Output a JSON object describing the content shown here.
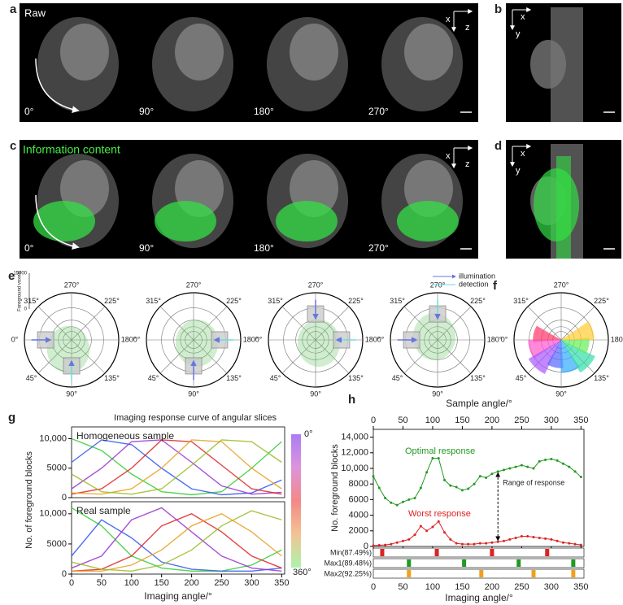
{
  "figure": {
    "panel_labels": [
      "a",
      "b",
      "c",
      "d",
      "e",
      "f",
      "g",
      "h"
    ],
    "raw_label": "Raw",
    "info_label": "Information content",
    "view_angles": [
      "0°",
      "90°",
      "180°",
      "270°"
    ],
    "axis_letters": [
      "x",
      "z",
      "y"
    ],
    "polar_angles": [
      "270°",
      "225°",
      "180°",
      "135°",
      "90°",
      "45°",
      "0°",
      "315°"
    ],
    "legend": [
      "illumination",
      "detection"
    ],
    "scale_label": "Foreground voxels",
    "scale_max": 15000,
    "scale_min": 0
  },
  "chart_data": [
    {
      "type": "line",
      "title": "Imaging response curve of angular slices",
      "annotation": "Homogeneous sample",
      "ylabel": "No. of foreground blocks",
      "colorbar_labels": [
        "0°",
        "360°"
      ],
      "x": [
        0,
        50,
        100,
        150,
        200,
        250,
        300,
        350
      ],
      "xlim": [
        0,
        355
      ],
      "ylim": [
        0,
        12000
      ],
      "yticks": [
        0,
        5000,
        {
          "value": 10000,
          "label": "10,000"
        }
      ],
      "series": [
        {
          "color": "#33cc33",
          "values": [
            10000,
            8000,
            4000,
            1000,
            500,
            1000,
            5000,
            9500
          ]
        },
        {
          "color": "#3355ee",
          "values": [
            6000,
            9800,
            9000,
            5000,
            1500,
            500,
            800,
            3000
          ]
        },
        {
          "color": "#9933cc",
          "values": [
            1500,
            5000,
            9500,
            9800,
            6000,
            2000,
            600,
            900
          ]
        },
        {
          "color": "#dd2222",
          "values": [
            600,
            1500,
            5000,
            9800,
            9500,
            5500,
            1500,
            600
          ]
        },
        {
          "color": "#e8a020",
          "values": [
            800,
            600,
            1500,
            5000,
            9800,
            9500,
            5000,
            1500
          ]
        },
        {
          "color": "#99bb22",
          "values": [
            4000,
            1000,
            600,
            1500,
            5500,
            9800,
            9500,
            6000
          ]
        }
      ]
    },
    {
      "type": "line",
      "annotation": "Real sample",
      "xlabel": "Imaging angle/°",
      "x": [
        0,
        50,
        100,
        150,
        200,
        250,
        300,
        350
      ],
      "xlim": [
        0,
        355
      ],
      "xticks": [
        0,
        50,
        100,
        150,
        200,
        250,
        300,
        350
      ],
      "ylim": [
        0,
        12000
      ],
      "yticks": [
        0,
        5000,
        {
          "value": 10000,
          "label": "10,000"
        }
      ],
      "series": [
        {
          "color": "#33cc33",
          "values": [
            11000,
            8000,
            3000,
            1000,
            500,
            500,
            1500,
            4000
          ]
        },
        {
          "color": "#3355ee",
          "values": [
            3000,
            9000,
            6000,
            2000,
            800,
            500,
            500,
            1000
          ]
        },
        {
          "color": "#9933cc",
          "values": [
            1000,
            3000,
            9000,
            11000,
            7000,
            3000,
            1000,
            500
          ]
        },
        {
          "color": "#dd2222",
          "values": [
            500,
            800,
            3000,
            8000,
            10000,
            7000,
            3000,
            1000
          ]
        },
        {
          "color": "#e8a020",
          "values": [
            500,
            500,
            1500,
            4000,
            8000,
            10000,
            7000,
            3000
          ]
        },
        {
          "color": "#99bb22",
          "values": [
            2000,
            800,
            500,
            1500,
            4000,
            8000,
            10500,
            9000
          ]
        }
      ]
    },
    {
      "type": "line",
      "xlabel": "Imaging angle/°",
      "x2label": "Sample angle/°",
      "ylabel": "No. foreground blocks",
      "annotation": "Range of response",
      "x": [
        0,
        10,
        20,
        30,
        40,
        50,
        60,
        70,
        80,
        90,
        100,
        110,
        120,
        130,
        140,
        150,
        160,
        170,
        180,
        190,
        200,
        210,
        220,
        230,
        240,
        250,
        260,
        270,
        280,
        290,
        300,
        310,
        320,
        330,
        340,
        350
      ],
      "xlim": [
        0,
        355
      ],
      "xticks": [
        0,
        50,
        100,
        150,
        200,
        250,
        300,
        350
      ],
      "ylim": [
        0,
        15000
      ],
      "yticks": [
        0,
        2000,
        4000,
        6000,
        8000,
        {
          "value": 10000,
          "label": "10,000"
        },
        {
          "value": 12000,
          "label": "12,000"
        },
        {
          "value": 14000,
          "label": "14,000"
        }
      ],
      "series": [
        {
          "name": "Optimal response",
          "color": "#229922",
          "values": [
            9000,
            7500,
            6200,
            5600,
            5300,
            5700,
            6000,
            6200,
            7500,
            9500,
            11300,
            11300,
            8500,
            7800,
            7600,
            7200,
            7400,
            8000,
            9000,
            8800,
            9300,
            9600,
            9800,
            10000,
            10200,
            10400,
            10200,
            10000,
            10900,
            11100,
            11200,
            11000,
            10600,
            10200,
            9600,
            8900
          ]
        },
        {
          "name": "Worst response",
          "color": "#dd2222",
          "values": [
            100,
            150,
            200,
            300,
            500,
            700,
            900,
            1500,
            2600,
            2000,
            2500,
            3200,
            1800,
            900,
            400,
            300,
            300,
            300,
            400,
            400,
            500,
            600,
            700,
            900,
            1100,
            1300,
            1300,
            1200,
            1100,
            1000,
            900,
            700,
            500,
            400,
            300,
            200
          ]
        }
      ],
      "sample_sets": [
        {
          "name": "Min(87.49%)",
          "color": "#dd2222",
          "angles": [
            15,
            107,
            200,
            293
          ]
        },
        {
          "name": "Max1(89.48%)",
          "color": "#229922",
          "angles": [
            60,
            153,
            245,
            337
          ]
        },
        {
          "name": "Max2(92.25%)",
          "color": "#f0a020",
          "angles": [
            60,
            182,
            270,
            337
          ]
        }
      ]
    }
  ]
}
